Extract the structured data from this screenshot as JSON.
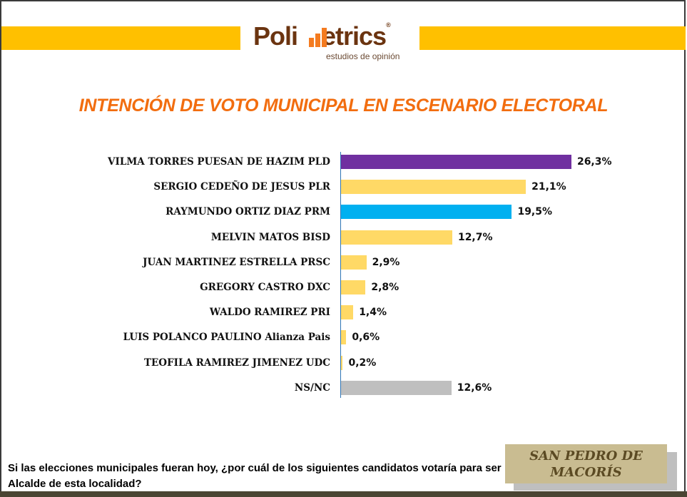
{
  "header": {
    "brand": {
      "prefix": "Poli",
      "suffix": "etrics",
      "registered": "®",
      "tagline": "estudios de opinión"
    },
    "band_color": "#ffc000"
  },
  "title": "INTENCIÓN DE VOTO MUNICIPAL EN ESCENARIO ELECTORAL",
  "chart_data": {
    "type": "bar",
    "orientation": "horizontal",
    "title": "INTENCIÓN DE VOTO MUNICIPAL EN ESCENARIO ELECTORAL",
    "xlabel": "",
    "ylabel": "",
    "unit": "%",
    "categories": [
      "VILMA TORRES PUESAN DE HAZIM PLD",
      "SERGIO CEDEÑO DE JESUS PLR",
      "RAYMUNDO ORTIZ DIAZ PRM",
      "MELVIN MATOS BISD",
      "JUAN MARTINEZ ESTRELLA PRSC",
      "GREGORY CASTRO DXC",
      "WALDO RAMIREZ PRI",
      "LUIS POLANCO PAULINO Alianza Pais",
      "TEOFILA RAMIREZ JIMENEZ UDC",
      "NS/NC"
    ],
    "values": [
      26.3,
      21.1,
      19.5,
      12.7,
      2.9,
      2.8,
      1.4,
      0.6,
      0.2,
      12.6
    ],
    "value_labels": [
      "26,3%",
      "21,1%",
      "19,5%",
      "12,7%",
      "2,9%",
      "2,8%",
      "1,4%",
      "0,6%",
      "0,2%",
      "12,6%"
    ],
    "colors": [
      "#7030a0",
      "#ffd966",
      "#00b0f0",
      "#ffd966",
      "#ffd966",
      "#ffd966",
      "#ffd966",
      "#ffd966",
      "#ffd966",
      "#bfbfbf"
    ],
    "grid": false,
    "legend": null
  },
  "footer": {
    "question": "Si las elecciones municipales fueran hoy, ¿por cuál de los siguientes candidatos votaría para ser Alcalde de esta localidad?",
    "location_line1": "SAN PEDRO DE",
    "location_line2": "MACORÍS"
  }
}
